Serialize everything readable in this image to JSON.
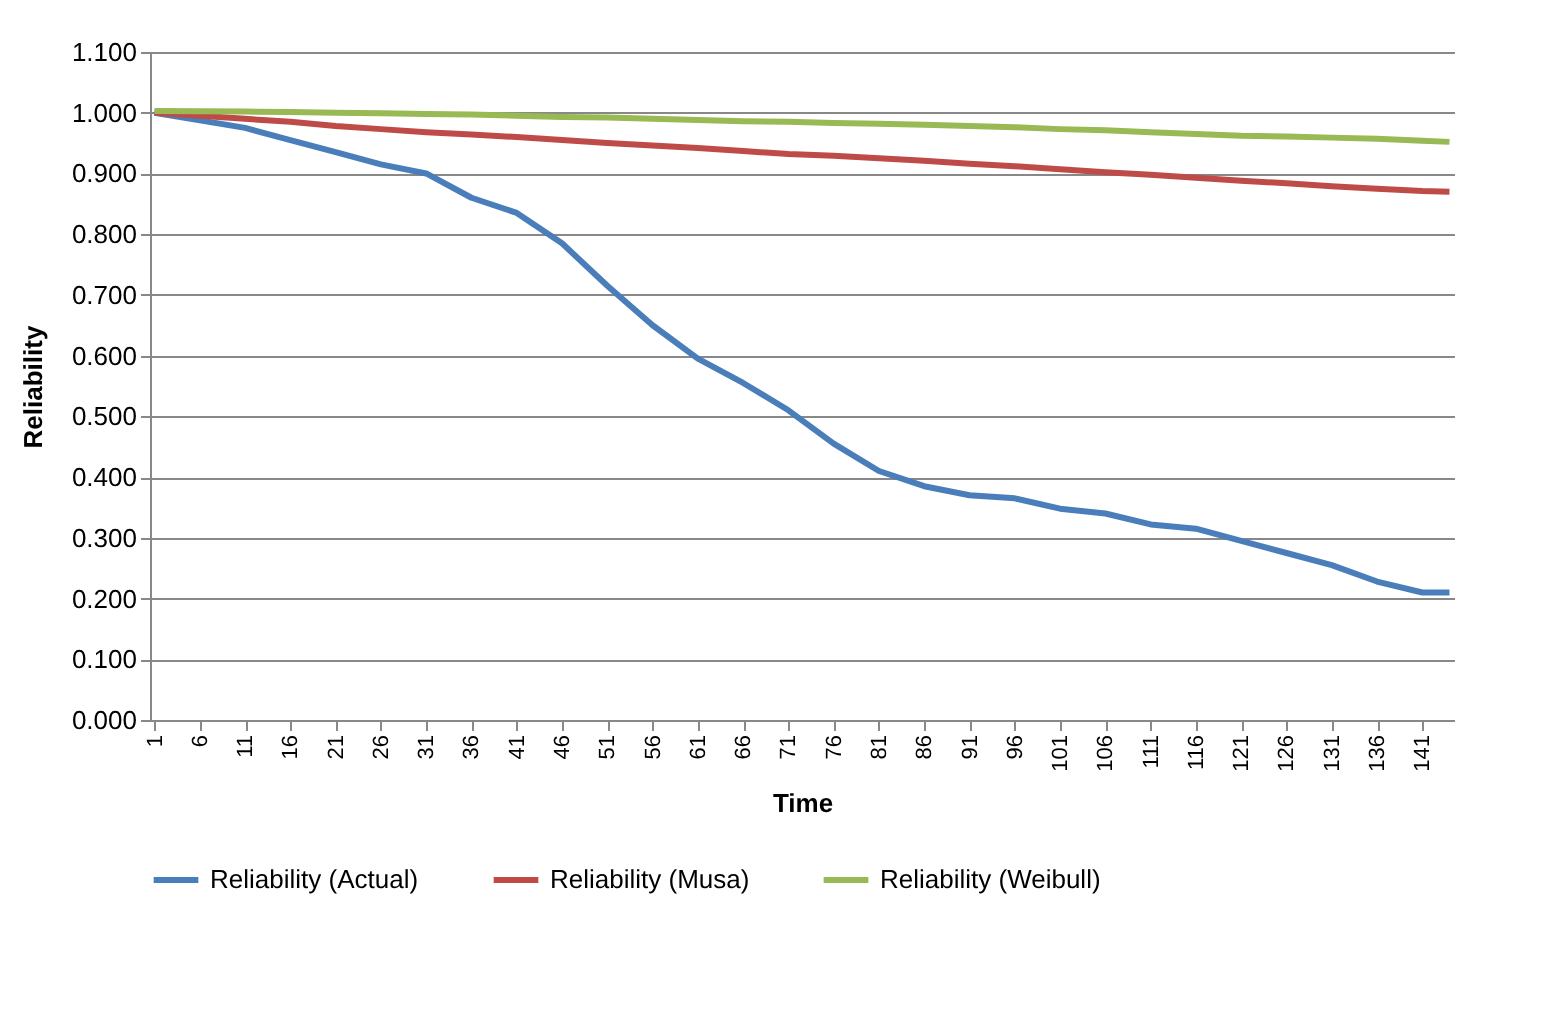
{
  "chart_data": {
    "type": "line",
    "xlabel": "Time",
    "ylabel": "Reliability",
    "x": [
      1,
      11,
      16,
      21,
      26,
      31,
      36,
      41,
      46,
      51,
      56,
      61,
      66,
      71,
      76,
      81,
      86,
      91,
      96,
      101,
      106,
      111,
      116,
      121,
      126,
      131,
      136,
      141,
      144
    ],
    "series": [
      {
        "name": "Reliability (Actual)",
        "color": "#4a7ebb",
        "values": [
          1.0,
          0.975,
          0.955,
          0.935,
          0.915,
          0.9,
          0.86,
          0.835,
          0.785,
          0.715,
          0.65,
          0.595,
          0.555,
          0.51,
          0.455,
          0.41,
          0.385,
          0.37,
          0.365,
          0.348,
          0.34,
          0.322,
          0.315,
          0.295,
          0.275,
          0.255,
          0.228,
          0.21,
          0.21
        ]
      },
      {
        "name": "Reliability (Musa)",
        "color": "#be4b48",
        "values": [
          1.0,
          0.99,
          0.985,
          0.978,
          0.973,
          0.968,
          0.964,
          0.96,
          0.955,
          0.95,
          0.946,
          0.942,
          0.937,
          0.932,
          0.929,
          0.925,
          0.921,
          0.916,
          0.912,
          0.907,
          0.902,
          0.898,
          0.893,
          0.888,
          0.884,
          0.879,
          0.875,
          0.871,
          0.87
        ]
      },
      {
        "name": "Reliability (Weibull)",
        "color": "#98b954",
        "values": [
          1.003,
          1.002,
          1.001,
          1.0,
          0.999,
          0.998,
          0.997,
          0.995,
          0.993,
          0.992,
          0.99,
          0.988,
          0.986,
          0.985,
          0.983,
          0.982,
          0.98,
          0.978,
          0.976,
          0.973,
          0.971,
          0.968,
          0.965,
          0.962,
          0.961,
          0.959,
          0.957,
          0.954,
          0.952
        ]
      }
    ],
    "xlim": [
      0.5,
      144.5
    ],
    "xticks": [
      1,
      6,
      11,
      16,
      21,
      26,
      31,
      36,
      41,
      46,
      51,
      56,
      61,
      66,
      71,
      76,
      81,
      86,
      91,
      96,
      101,
      106,
      111,
      116,
      121,
      126,
      131,
      136,
      141
    ],
    "ylim": [
      0,
      1.1
    ],
    "yticks": [
      {
        "value": 0,
        "label": "0.000"
      },
      {
        "value": 0.1,
        "label": "0.100"
      },
      {
        "value": 0.2,
        "label": "0.200"
      },
      {
        "value": 0.3,
        "label": "0.300"
      },
      {
        "value": 0.4,
        "label": "0.400"
      },
      {
        "value": 0.5,
        "label": "0.500"
      },
      {
        "value": 0.6,
        "label": "0.600"
      },
      {
        "value": 0.7,
        "label": "0.700"
      },
      {
        "value": 0.8,
        "label": "0.800"
      },
      {
        "value": 0.9,
        "label": "0.900"
      },
      {
        "value": 1.0,
        "label": "1.000"
      },
      {
        "value": 1.1,
        "label": "1.100"
      }
    ],
    "grid": "y",
    "legend": "bottom",
    "marker": "none",
    "line_style": "solid"
  }
}
